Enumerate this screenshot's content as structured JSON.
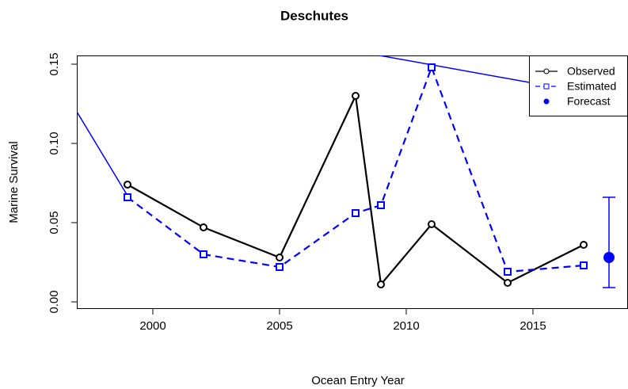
{
  "chart_data": {
    "type": "line",
    "title": "Deschutes",
    "x_label": "Ocean Entry Year",
    "y_label": "Marine Survival",
    "xlim": [
      1997,
      2018.75
    ],
    "ylim": [
      -0.0045,
      0.1555
    ],
    "xticks": [
      2000,
      2005,
      2010,
      2015
    ],
    "yticks": [
      {
        "value": 0,
        "label": "0.00"
      },
      0.05,
      {
        "value": 0.1,
        "label": "0.10"
      },
      0.15
    ],
    "x": [
      1999,
      2002,
      2005,
      2008,
      2009,
      2011,
      2014,
      2017
    ],
    "series": [
      {
        "name": "Observed",
        "color": "#000000",
        "dashed": false,
        "marker": "circle",
        "values": [
          0.074,
          0.047,
          0.028,
          0.13,
          0.011,
          0.049,
          0.012,
          0.036
        ]
      },
      {
        "name": "Estimated",
        "color": "#0000ff",
        "dashed": true,
        "marker": "square",
        "values": [
          0.066,
          0.03,
          0.022,
          0.056,
          0.061,
          0.148,
          0.019,
          0.023
        ]
      }
    ],
    "lines": [
      {
        "color": "#0000ff",
        "x": [
          1997,
          1999,
          null,
          2008.6,
          2014.85
        ],
        "values": [
          0.12,
          0.067,
          null,
          0.1565,
          0.1385
        ]
      }
    ],
    "forecast": {
      "name": "Forecast",
      "color": "#0000ff",
      "x": 2018,
      "value": 0.028,
      "lower": 0.009,
      "upper": 0.066
    },
    "legend": "top-right"
  }
}
